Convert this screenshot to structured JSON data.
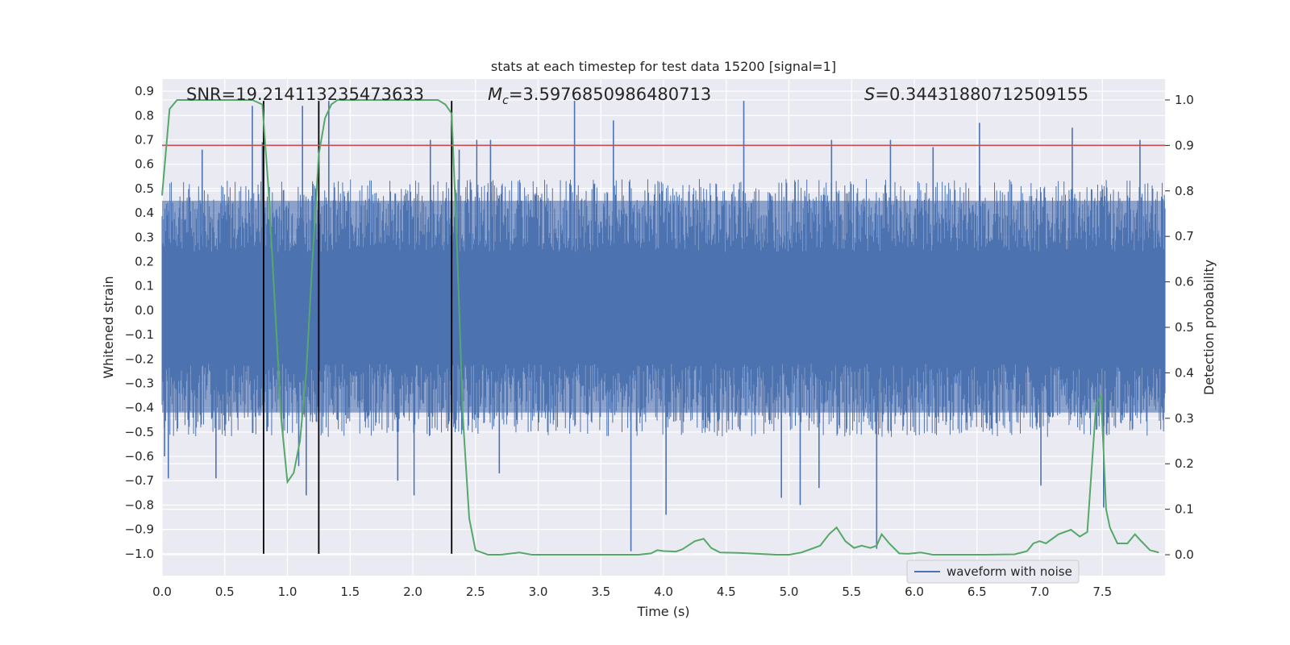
{
  "chart_data": {
    "type": "line",
    "title": "stats at each timestep for test data 15200 [signal=1]",
    "xlabel": "Time (s)",
    "ylabel": "Whitened strain",
    "y2label": "Detection probability",
    "xlim": [
      0.0,
      8.0
    ],
    "ylim": [
      -1.09,
      0.95
    ],
    "y2lim": [
      -0.046,
      1.046
    ],
    "xticks": [
      0.0,
      0.5,
      1.0,
      1.5,
      2.0,
      2.5,
      3.0,
      3.5,
      4.0,
      4.5,
      5.0,
      5.5,
      6.0,
      6.5,
      7.0,
      7.5
    ],
    "xtick_labels": [
      "0.0",
      "0.5",
      "1.0",
      "1.5",
      "2.0",
      "2.5",
      "3.0",
      "3.5",
      "4.0",
      "4.5",
      "5.0",
      "5.5",
      "6.0",
      "6.5",
      "7.0",
      "7.5"
    ],
    "yticks": [
      0.9,
      0.8,
      0.7,
      0.6,
      0.5,
      0.4,
      0.3,
      0.2,
      0.1,
      0.0,
      -0.1,
      -0.2,
      -0.3,
      -0.4,
      -0.5,
      -0.6,
      -0.7,
      -0.8,
      -0.9,
      -1.0
    ],
    "ytick_labels": [
      "0.9",
      "0.8",
      "0.7",
      "0.6",
      "0.5",
      "0.4",
      "0.3",
      "0.2",
      "0.1",
      "0.0",
      "−0.1",
      "−0.2",
      "−0.3",
      "−0.4",
      "−0.5",
      "−0.6",
      "−0.7",
      "−0.8",
      "−0.9",
      "−1.0"
    ],
    "y2ticks": [
      1.0,
      0.9,
      0.8,
      0.7,
      0.6,
      0.5,
      0.4,
      0.3,
      0.2,
      0.1,
      0.0
    ],
    "y2tick_labels": [
      "1.0",
      "0.9",
      "0.8",
      "0.7",
      "0.6",
      "0.5",
      "0.4",
      "0.3",
      "0.2",
      "0.1",
      "0.0"
    ],
    "grid": true,
    "annotations": {
      "snr": "SNR=19.214113235473633",
      "mc_symbol": "M",
      "mc_sub": "c",
      "mc_value": "=3.5976850986480713",
      "s_symbol": "S",
      "s_value": "=0.34431880712509155"
    },
    "threshold": {
      "y2": 0.9,
      "color": "#c44e52"
    },
    "vertical_markers": {
      "x": [
        0.81,
        1.25,
        2.31
      ],
      "y_range": [
        -1.0,
        0.86
      ],
      "color": "#000000"
    },
    "legend": {
      "position": "lower-right",
      "entries": [
        {
          "label": "waveform with noise",
          "color": "#4c72b0"
        }
      ]
    },
    "waveform": {
      "name": "waveform with noise",
      "color": "#4c72b0",
      "typical_envelope": [
        -0.42,
        0.45
      ],
      "spikes": [
        {
          "x": 0.02,
          "y": -0.6
        },
        {
          "x": 0.05,
          "y": -0.69
        },
        {
          "x": 0.32,
          "y": 0.66
        },
        {
          "x": 0.43,
          "y": -0.69
        },
        {
          "x": 0.72,
          "y": 0.84
        },
        {
          "x": 0.8,
          "y": 0.69
        },
        {
          "x": 1.09,
          "y": -0.64
        },
        {
          "x": 1.12,
          "y": 0.84
        },
        {
          "x": 1.15,
          "y": -0.76
        },
        {
          "x": 1.33,
          "y": 0.86
        },
        {
          "x": 1.88,
          "y": -0.7
        },
        {
          "x": 2.01,
          "y": -0.76
        },
        {
          "x": 2.14,
          "y": 0.7
        },
        {
          "x": 2.37,
          "y": 0.66
        },
        {
          "x": 2.51,
          "y": 0.7
        },
        {
          "x": 2.62,
          "y": 0.7
        },
        {
          "x": 2.69,
          "y": -0.67
        },
        {
          "x": 3.29,
          "y": 0.86
        },
        {
          "x": 3.6,
          "y": 0.78
        },
        {
          "x": 3.74,
          "y": -0.99
        },
        {
          "x": 4.02,
          "y": -0.84
        },
        {
          "x": 4.64,
          "y": 0.86
        },
        {
          "x": 4.94,
          "y": -0.77
        },
        {
          "x": 5.09,
          "y": -0.8
        },
        {
          "x": 5.24,
          "y": -0.73
        },
        {
          "x": 5.34,
          "y": 0.7
        },
        {
          "x": 5.7,
          "y": -0.98
        },
        {
          "x": 5.81,
          "y": 0.7
        },
        {
          "x": 6.15,
          "y": 0.67
        },
        {
          "x": 6.52,
          "y": 0.77
        },
        {
          "x": 7.01,
          "y": -0.72
        },
        {
          "x": 7.26,
          "y": 0.75
        },
        {
          "x": 7.51,
          "y": -0.81
        },
        {
          "x": 7.8,
          "y": 0.7
        }
      ]
    },
    "probability": {
      "color": "#55a868",
      "x": [
        0.0,
        0.06,
        0.12,
        0.2,
        0.4,
        0.6,
        0.72,
        0.8,
        0.85,
        0.9,
        0.95,
        1.0,
        1.05,
        1.1,
        1.15,
        1.2,
        1.25,
        1.3,
        1.35,
        1.4,
        1.45,
        1.5,
        1.6,
        1.8,
        2.0,
        2.2,
        2.26,
        2.31,
        2.35,
        2.4,
        2.45,
        2.5,
        2.6,
        2.7,
        2.85,
        2.95,
        3.2,
        3.5,
        3.8,
        3.9,
        3.95,
        4.0,
        4.1,
        4.15,
        4.25,
        4.32,
        4.38,
        4.45,
        4.6,
        4.75,
        4.9,
        5.0,
        5.1,
        5.25,
        5.32,
        5.38,
        5.45,
        5.52,
        5.58,
        5.65,
        5.7,
        5.74,
        5.8,
        5.88,
        5.95,
        6.05,
        6.15,
        6.3,
        6.55,
        6.8,
        6.9,
        6.95,
        7.0,
        7.05,
        7.15,
        7.25,
        7.32,
        7.38,
        7.45,
        7.49,
        7.53,
        7.56,
        7.62,
        7.7,
        7.76,
        7.81,
        7.88,
        7.95
      ],
      "y": [
        0.79,
        0.98,
        1.0,
        1.0,
        1.0,
        1.0,
        1.0,
        0.99,
        0.8,
        0.55,
        0.3,
        0.16,
        0.18,
        0.25,
        0.4,
        0.65,
        0.88,
        0.96,
        0.99,
        1.0,
        1.0,
        1.0,
        1.0,
        1.0,
        1.0,
        1.0,
        0.99,
        0.97,
        0.7,
        0.3,
        0.08,
        0.01,
        0.0,
        0.0,
        0.005,
        0.0,
        0.0,
        0.0,
        0.0,
        0.003,
        0.01,
        0.008,
        0.007,
        0.012,
        0.03,
        0.035,
        0.015,
        0.005,
        0.004,
        0.002,
        0.0,
        0.0,
        0.005,
        0.02,
        0.045,
        0.06,
        0.03,
        0.015,
        0.02,
        0.015,
        0.02,
        0.045,
        0.025,
        0.003,
        0.002,
        0.005,
        0.0,
        0.0,
        0.0,
        0.001,
        0.008,
        0.025,
        0.03,
        0.025,
        0.045,
        0.055,
        0.04,
        0.05,
        0.33,
        0.35,
        0.1,
        0.06,
        0.025,
        0.025,
        0.045,
        0.03,
        0.01,
        0.005
      ]
    }
  }
}
